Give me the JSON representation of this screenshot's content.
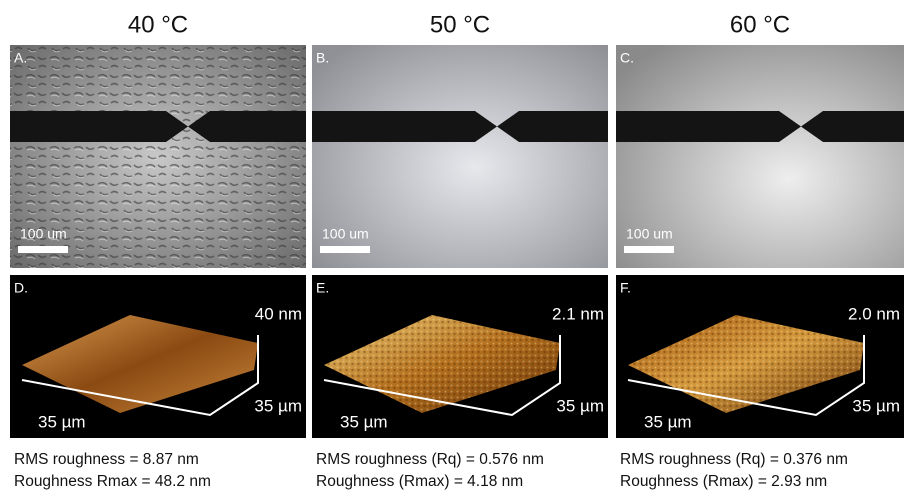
{
  "columns": [
    {
      "title": "40 °C",
      "micrograph": {
        "label": "A.",
        "scale_bar": "100 um"
      },
      "afm": {
        "label": "D.",
        "height": "40 nm",
        "x_size": "35 µm",
        "y_size": "35 µm"
      },
      "roughness": [
        "RMS roughness = 8.87 nm",
        "Roughness Rmax = 48.2 nm"
      ]
    },
    {
      "title": "50 °C",
      "micrograph": {
        "label": "B.",
        "scale_bar": "100 um"
      },
      "afm": {
        "label": "E.",
        "height": "2.1 nm",
        "x_size": "35 µm",
        "y_size": "35 µm"
      },
      "roughness": [
        "RMS roughness (Rq) = 0.576 nm",
        "Roughness (Rmax) = 4.18 nm"
      ]
    },
    {
      "title": "60 °C",
      "micrograph": {
        "label": "C.",
        "scale_bar": "100 um"
      },
      "afm": {
        "label": "F.",
        "height": "2.0 nm",
        "x_size": "35 µm",
        "y_size": "35 µm"
      },
      "roughness": [
        "RMS roughness (Rq) = 0.376 nm",
        "Roughness (Rmax) = 2.93 nm"
      ]
    }
  ]
}
